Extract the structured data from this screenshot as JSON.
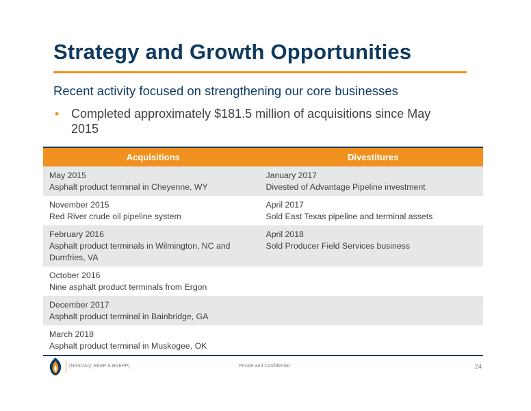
{
  "slide": {
    "title": "Strategy and Growth Opportunities",
    "subtitle": "Recent activity focused on strengthening our core businesses",
    "bullet": "Completed approximately $181.5 million of acquisitions since May 2015",
    "bullet_marker": "•"
  },
  "table": {
    "headers": [
      "Acquisitions",
      "Divestitures"
    ],
    "rows": [
      {
        "acq_date": "May 2015",
        "acq_desc": "Asphalt product terminal in Cheyenne, WY",
        "div_date": "January 2017",
        "div_desc": "Divested of Advantage Pipeline investment"
      },
      {
        "acq_date": "November 2015",
        "acq_desc": "Red River crude oil pipeline system",
        "div_date": "April 2017",
        "div_desc": "Sold East Texas pipeline and terminal assets"
      },
      {
        "acq_date": "February 2016",
        "acq_desc": "Asphalt product terminals in Wilmington, NC and Dumfries, VA",
        "div_date": "April 2018",
        "div_desc": "Sold Producer Field Services business"
      },
      {
        "acq_date": "October 2016",
        "acq_desc": "Nine asphalt product terminals from Ergon",
        "div_date": "",
        "div_desc": ""
      },
      {
        "acq_date": "December 2017",
        "acq_desc": "Asphalt product terminal in Bainbridge, GA",
        "div_date": "",
        "div_desc": ""
      },
      {
        "acq_date": "March 2018",
        "acq_desc": "Asphalt product terminal in Muskogee, OK",
        "div_date": "",
        "div_desc": ""
      }
    ]
  },
  "footer": {
    "ticker": "(NASDAQ: BKEP & BKEPP)",
    "confidential": "Private and Confidential",
    "page_number": "24",
    "logo_icon": "flame-logo-icon"
  },
  "colors": {
    "title": "#0f3a5f",
    "accent": "#f0911f",
    "row_shade": "#e6e7e8"
  }
}
